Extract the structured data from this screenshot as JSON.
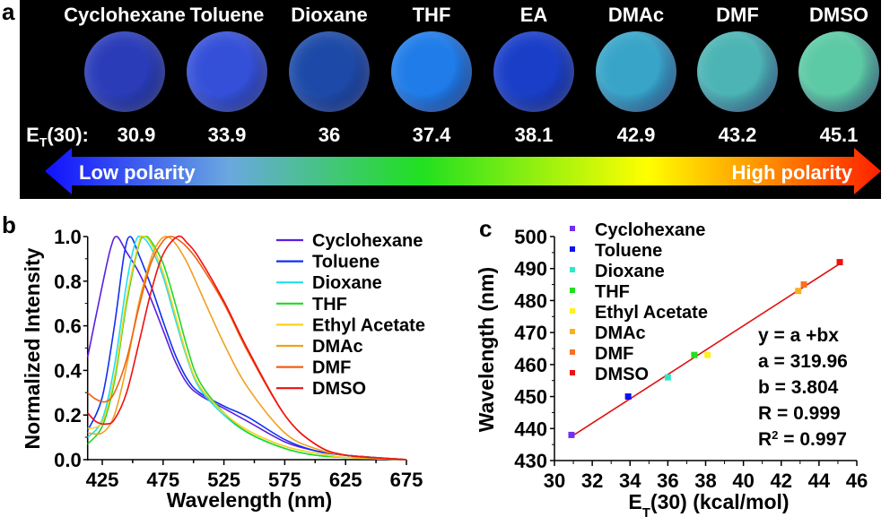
{
  "panel_labels": {
    "a": "a",
    "b": "b",
    "c": "c"
  },
  "panel_a": {
    "et_prefix": "E",
    "et_sub": "T",
    "et_suffix": "(30):",
    "solvents": [
      {
        "name": "Cyclohexane",
        "et": "30.9",
        "color": "#2a3cb8"
      },
      {
        "name": "Toluene",
        "et": "33.9",
        "color": "#3550d8"
      },
      {
        "name": "Dioxane",
        "et": "36",
        "color": "#1d4aa8"
      },
      {
        "name": "THF",
        "et": "37.4",
        "color": "#1f7ce8"
      },
      {
        "name": "EA",
        "et": "38.1",
        "color": "#1a3ec8"
      },
      {
        "name": "DMAc",
        "et": "42.9",
        "color": "#38a4c8"
      },
      {
        "name": "DMF",
        "et": "43.2",
        "color": "#4cb4b4"
      },
      {
        "name": "DMSO",
        "et": "45.1",
        "color": "#5ccaa4"
      }
    ],
    "arrow_left_label": "Low polarity",
    "arrow_right_label": "High polarity",
    "gradient_colors": [
      "#1010ff",
      "#6aa8e0",
      "#20e020",
      "#ffff00",
      "#ff2000"
    ]
  },
  "chart_data": [
    {
      "type": "line",
      "xlabel": "Wavelength (nm)",
      "ylabel": "Normalized Intensity",
      "xlim": [
        413,
        675
      ],
      "ylim": [
        0,
        1.0
      ],
      "xticks": [
        "425",
        "475",
        "525",
        "575",
        "625",
        "675"
      ],
      "yticks": [
        "0.0",
        "0.2",
        "0.4",
        "0.6",
        "0.8",
        "1.0"
      ],
      "legend_placement": "top-right",
      "series": [
        {
          "name": "Cyclohexane",
          "color": "#5a1ee0",
          "points": [
            [
              413,
              0.46
            ],
            [
              425,
              0.78
            ],
            [
              432,
              0.95
            ],
            [
              437,
              1.0
            ],
            [
              445,
              0.93
            ],
            [
              455,
              0.84
            ],
            [
              465,
              0.72
            ],
            [
              475,
              0.58
            ],
            [
              485,
              0.44
            ],
            [
              495,
              0.34
            ],
            [
              505,
              0.29
            ],
            [
              525,
              0.23
            ],
            [
              545,
              0.17
            ],
            [
              575,
              0.08
            ],
            [
              600,
              0.04
            ],
            [
              625,
              0.02
            ],
            [
              675,
              0
            ]
          ]
        },
        {
          "name": "Toluene",
          "color": "#1030f0",
          "points": [
            [
              413,
              0.13
            ],
            [
              425,
              0.28
            ],
            [
              435,
              0.6
            ],
            [
              443,
              0.92
            ],
            [
              448,
              1.0
            ],
            [
              455,
              0.92
            ],
            [
              465,
              0.78
            ],
            [
              475,
              0.62
            ],
            [
              485,
              0.47
            ],
            [
              495,
              0.36
            ],
            [
              505,
              0.3
            ],
            [
              525,
              0.24
            ],
            [
              545,
              0.19
            ],
            [
              575,
              0.09
            ],
            [
              600,
              0.04
            ],
            [
              625,
              0.02
            ],
            [
              675,
              0
            ]
          ]
        },
        {
          "name": "Dioxane",
          "color": "#20e0f0",
          "points": [
            [
              413,
              0.1
            ],
            [
              425,
              0.18
            ],
            [
              435,
              0.42
            ],
            [
              445,
              0.79
            ],
            [
              452,
              0.97
            ],
            [
              457,
              1.0
            ],
            [
              465,
              0.95
            ],
            [
              475,
              0.82
            ],
            [
              485,
              0.63
            ],
            [
              495,
              0.45
            ],
            [
              505,
              0.32
            ],
            [
              525,
              0.2
            ],
            [
              545,
              0.12
            ],
            [
              575,
              0.05
            ],
            [
              600,
              0.02
            ],
            [
              625,
              0.01
            ],
            [
              675,
              0
            ]
          ]
        },
        {
          "name": "THF",
          "color": "#20d820",
          "points": [
            [
              413,
              0.07
            ],
            [
              425,
              0.15
            ],
            [
              435,
              0.35
            ],
            [
              445,
              0.7
            ],
            [
              455,
              0.96
            ],
            [
              460,
              1.0
            ],
            [
              465,
              0.98
            ],
            [
              475,
              0.88
            ],
            [
              485,
              0.7
            ],
            [
              495,
              0.5
            ],
            [
              505,
              0.35
            ],
            [
              525,
              0.21
            ],
            [
              545,
              0.12
            ],
            [
              575,
              0.05
            ],
            [
              600,
              0.02
            ],
            [
              625,
              0.01
            ],
            [
              675,
              0
            ]
          ]
        },
        {
          "name": "Ethyl Acetate",
          "color": "#f8d020",
          "points": [
            [
              413,
              0.14
            ],
            [
              425,
              0.17
            ],
            [
              435,
              0.37
            ],
            [
              445,
              0.72
            ],
            [
              455,
              0.97
            ],
            [
              459,
              1.0
            ],
            [
              465,
              0.97
            ],
            [
              475,
              0.84
            ],
            [
              485,
              0.65
            ],
            [
              495,
              0.46
            ],
            [
              505,
              0.33
            ],
            [
              525,
              0.21
            ],
            [
              545,
              0.13
            ],
            [
              575,
              0.06
            ],
            [
              600,
              0.03
            ],
            [
              625,
              0.01
            ],
            [
              675,
              0
            ]
          ]
        },
        {
          "name": "DMAc",
          "color": "#f0a020",
          "points": [
            [
              413,
              0.12
            ],
            [
              425,
              0.12
            ],
            [
              435,
              0.2
            ],
            [
              445,
              0.42
            ],
            [
              455,
              0.7
            ],
            [
              465,
              0.9
            ],
            [
              472,
              0.98
            ],
            [
              478,
              1.0
            ],
            [
              485,
              0.97
            ],
            [
              495,
              0.88
            ],
            [
              505,
              0.76
            ],
            [
              525,
              0.52
            ],
            [
              545,
              0.32
            ],
            [
              575,
              0.12
            ],
            [
              600,
              0.05
            ],
            [
              625,
              0.02
            ],
            [
              675,
              0
            ]
          ]
        },
        {
          "name": "DMF",
          "color": "#f06010",
          "points": [
            [
              413,
              0.3
            ],
            [
              420,
              0.27
            ],
            [
              428,
              0.26
            ],
            [
              435,
              0.3
            ],
            [
              445,
              0.45
            ],
            [
              455,
              0.68
            ],
            [
              465,
              0.88
            ],
            [
              475,
              0.98
            ],
            [
              482,
              1.0
            ],
            [
              489,
              0.98
            ],
            [
              495,
              0.95
            ],
            [
              505,
              0.88
            ],
            [
              525,
              0.7
            ],
            [
              545,
              0.48
            ],
            [
              575,
              0.2
            ],
            [
              600,
              0.07
            ],
            [
              625,
              0.02
            ],
            [
              675,
              0
            ]
          ]
        },
        {
          "name": "DMSO",
          "color": "#f01010",
          "points": [
            [
              413,
              0.21
            ],
            [
              420,
              0.17
            ],
            [
              428,
              0.16
            ],
            [
              435,
              0.18
            ],
            [
              445,
              0.3
            ],
            [
              455,
              0.52
            ],
            [
              465,
              0.75
            ],
            [
              475,
              0.92
            ],
            [
              487,
              1.0
            ],
            [
              495,
              0.97
            ],
            [
              505,
              0.9
            ],
            [
              525,
              0.71
            ],
            [
              545,
              0.49
            ],
            [
              575,
              0.2
            ],
            [
              600,
              0.07
            ],
            [
              625,
              0.02
            ],
            [
              675,
              0
            ]
          ]
        }
      ]
    },
    {
      "type": "scatter",
      "xlabel_main": "E",
      "xlabel_sub": "T",
      "xlabel_rest": "(30) (kcal/mol)",
      "ylabel": "Wavelength (nm)",
      "xlim": [
        30,
        46
      ],
      "ylim": [
        430,
        500
      ],
      "xticks": [
        "30",
        "32",
        "34",
        "36",
        "38",
        "40",
        "42",
        "44",
        "46"
      ],
      "yticks": [
        "430",
        "440",
        "450",
        "460",
        "470",
        "480",
        "490",
        "500"
      ],
      "legend_placement": "top-left",
      "series": [
        {
          "name": "Cyclohexane",
          "color": "#7030f0",
          "x": 30.9,
          "y": 438
        },
        {
          "name": "Toluene",
          "color": "#1010f0",
          "x": 33.9,
          "y": 450
        },
        {
          "name": "Dioxane",
          "color": "#30e8c8",
          "x": 36.0,
          "y": 456
        },
        {
          "name": "THF",
          "color": "#20e020",
          "x": 37.4,
          "y": 463
        },
        {
          "name": "Ethyl Acetate",
          "color": "#fff020",
          "x": 38.1,
          "y": 463
        },
        {
          "name": "DMAc",
          "color": "#f8b020",
          "x": 42.9,
          "y": 483
        },
        {
          "name": "DMF",
          "color": "#f87020",
          "x": 43.2,
          "y": 485
        },
        {
          "name": "DMSO",
          "color": "#f01010",
          "x": 45.1,
          "y": 492
        }
      ],
      "fit": {
        "a": 319.96,
        "b": 3.804,
        "x_range": [
          30.9,
          45.1
        ],
        "color": "#e01010"
      },
      "annotations": [
        "y = a +bx",
        "a = 319.96",
        "b = 3.804",
        "R = 0.999"
      ],
      "r2_label": "R",
      "r2_sup": "2",
      "r2_value": " = 0.997"
    }
  ]
}
